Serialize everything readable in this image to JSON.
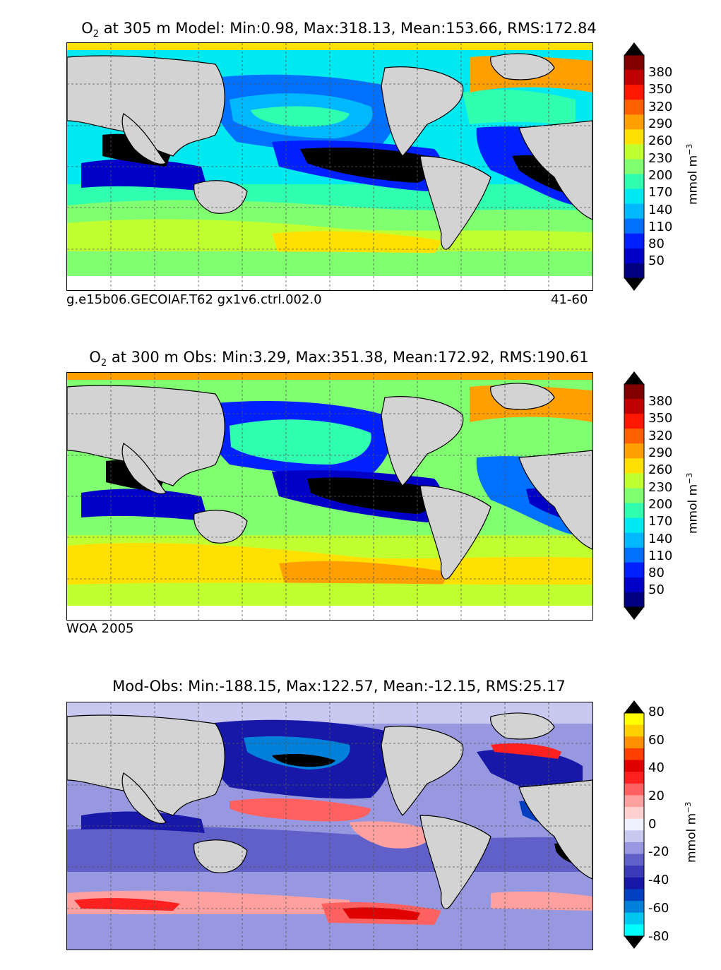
{
  "colors": {
    "land": "#d3d3d3",
    "o2_scale": [
      "#000080",
      "#0000c8",
      "#0020ff",
      "#0070ff",
      "#00b8ff",
      "#00e8f0",
      "#30ffb0",
      "#80ff70",
      "#c0ff30",
      "#ffe000",
      "#ffa000",
      "#ff6000",
      "#ff1800",
      "#c00000",
      "#800000"
    ],
    "diff_scale": [
      "#00ffff",
      "#00c8f0",
      "#0080d8",
      "#0040c0",
      "#1818a8",
      "#3a3ab8",
      "#6060c8",
      "#9898e0",
      "#c8c8f0",
      "#f0f0ff",
      "#ffd0d0",
      "#ffa0a0",
      "#ff6060",
      "#ff2020",
      "#e00000",
      "#ff4000",
      "#ff9000",
      "#ffd000",
      "#ffff00"
    ]
  },
  "panels": [
    {
      "title_prefix": "O",
      "title_sub": "2",
      "title_rest": " at 305 m Model: Min:0.98, Max:318.13, Mean:153.66, RMS:172.84",
      "footer_left": "g.e15b06.GECOIAF.T62 gx1v6.ctrl.002.0",
      "footer_right": "41-60",
      "colorbar": {
        "ticks": [
          "380",
          "350",
          "320",
          "290",
          "260",
          "230",
          "200",
          "170",
          "140",
          "110",
          "80",
          "50"
        ],
        "unit": "mmol m",
        "unit_sup": "−3"
      }
    },
    {
      "title_prefix": "O",
      "title_sub": "2",
      "title_rest": " at 300 m Obs: Min:3.29, Max:351.38, Mean:172.92, RMS:190.61",
      "footer_left": "WOA 2005",
      "footer_right": "",
      "colorbar": {
        "ticks": [
          "380",
          "350",
          "320",
          "290",
          "260",
          "230",
          "200",
          "170",
          "140",
          "110",
          "80",
          "50"
        ],
        "unit": "mmol m",
        "unit_sup": "−3"
      }
    },
    {
      "title_prefix": "",
      "title_sub": "",
      "title_rest": "Mod-Obs: Min:-188.15, Max:122.57, Mean:-12.15, RMS:25.17",
      "footer_left": "",
      "footer_right": "",
      "colorbar": {
        "ticks": [
          "80",
          "60",
          "40",
          "20",
          "0",
          "-20",
          "-40",
          "-60",
          "-80"
        ],
        "unit": "mmol m",
        "unit_sup": "−3"
      }
    }
  ]
}
